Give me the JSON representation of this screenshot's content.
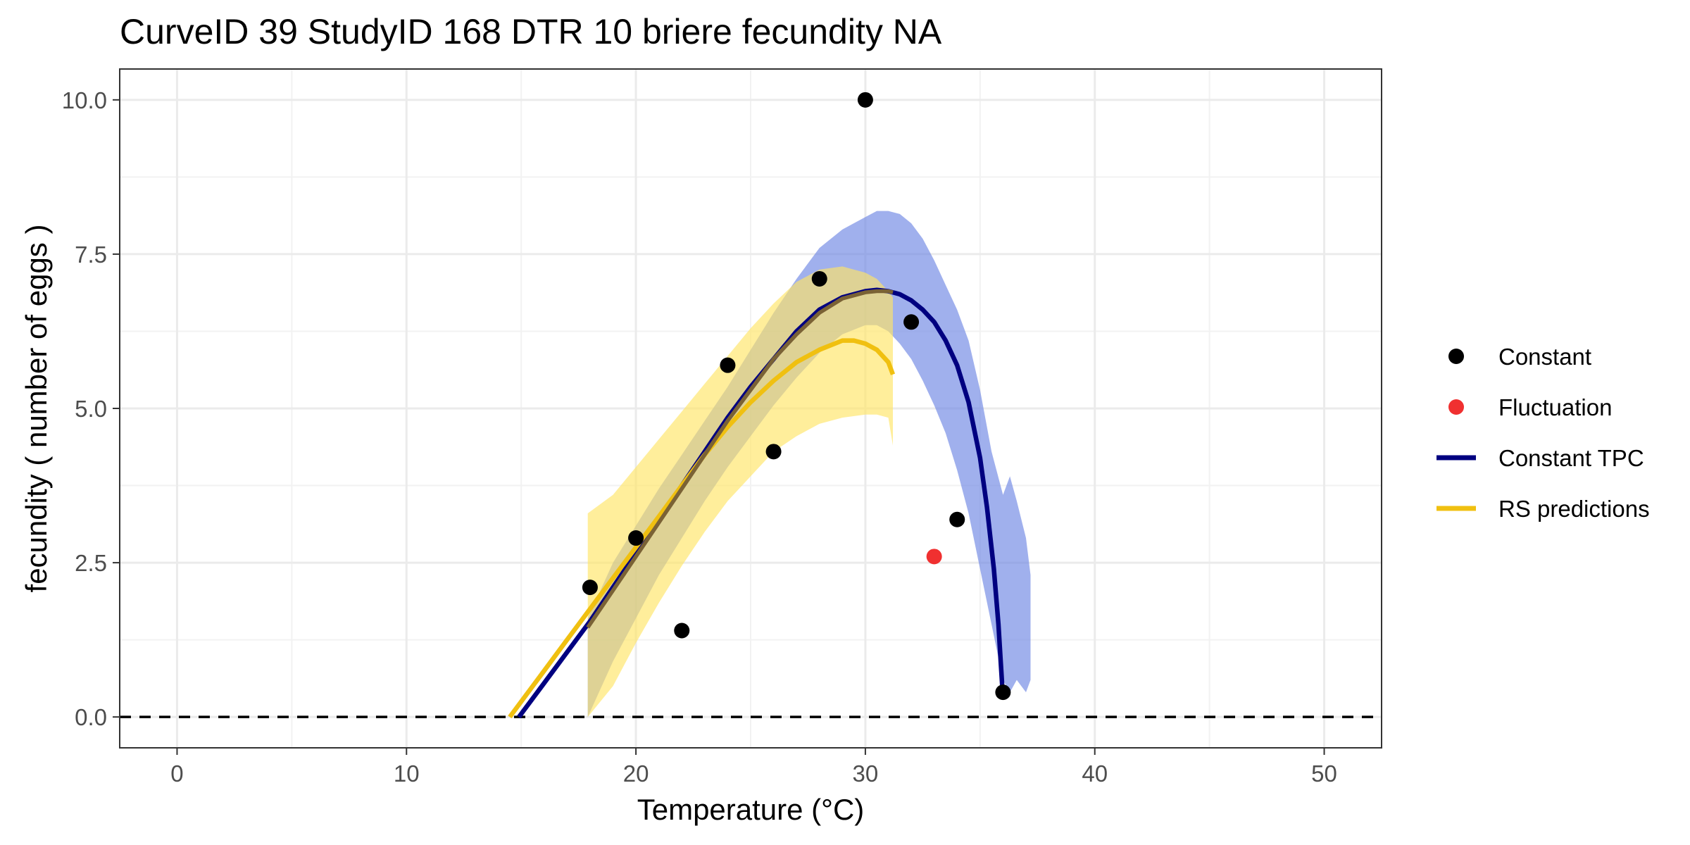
{
  "chart_data": {
    "type": "scatter",
    "title": "CurveID 39 StudyID 168 DTR 10 briere fecundity NA",
    "xlabel": "Temperature (°C)",
    "ylabel": "fecundity ( number of eggs )",
    "xlim": [
      -2.5,
      52.5
    ],
    "ylim": [
      -0.5,
      10.5
    ],
    "x_ticks": [
      0,
      10,
      20,
      30,
      40,
      50
    ],
    "x_tick_labels": [
      "0",
      "10",
      "20",
      "30",
      "40",
      "50"
    ],
    "y_ticks": [
      0,
      2.5,
      5,
      7.5,
      10
    ],
    "y_tick_labels": [
      "0.0",
      "2.5",
      "5.0",
      "7.5",
      "10.0"
    ],
    "grid": true,
    "legend_position": "right",
    "reference_line": {
      "y": 0,
      "style": "dashed",
      "color": "#000000"
    },
    "series": [
      {
        "name": "Constant",
        "kind": "points",
        "color": "#000000",
        "x": [
          18,
          20,
          22,
          24,
          26,
          28,
          30,
          32,
          34,
          36
        ],
        "y": [
          2.1,
          2.9,
          1.4,
          5.7,
          4.3,
          7.1,
          10.0,
          6.4,
          3.2,
          0.4
        ]
      },
      {
        "name": "Fluctuation",
        "kind": "points",
        "color": "#f03030",
        "x": [
          33
        ],
        "y": [
          2.6
        ]
      },
      {
        "name": "Constant TPC",
        "kind": "line",
        "color": "#000080",
        "x": [
          14.9,
          16,
          17,
          18,
          19,
          20,
          21,
          22,
          23,
          24,
          25,
          26,
          27,
          28,
          29,
          30,
          30.5,
          31,
          31.5,
          32,
          32.5,
          33,
          33.5,
          34,
          34.5,
          35,
          35.3,
          35.6,
          35.8,
          35.9,
          36.0
        ],
        "y": [
          0.0,
          0.55,
          1.05,
          1.55,
          2.1,
          2.65,
          3.2,
          3.75,
          4.3,
          4.85,
          5.35,
          5.8,
          6.25,
          6.6,
          6.8,
          6.9,
          6.92,
          6.9,
          6.85,
          6.75,
          6.6,
          6.4,
          6.1,
          5.7,
          5.1,
          4.2,
          3.4,
          2.4,
          1.5,
          0.9,
          0.3
        ],
        "ribbon": {
          "color": "#6d86e3",
          "x": [
            17.9,
            19,
            20,
            21,
            22,
            23,
            24,
            25,
            26,
            27,
            28,
            29,
            30,
            30.5,
            31,
            31.5,
            32,
            32.5,
            33,
            33.5,
            34,
            34.5,
            35,
            35.5,
            36,
            36.3,
            36.6,
            37.0,
            37.2
          ],
          "upper": [
            1.6,
            2.5,
            3.1,
            3.7,
            4.25,
            4.8,
            5.35,
            5.95,
            6.55,
            7.1,
            7.6,
            7.9,
            8.1,
            8.2,
            8.2,
            8.15,
            8.0,
            7.75,
            7.4,
            7.0,
            6.6,
            6.1,
            5.3,
            4.3,
            3.6,
            3.9,
            3.5,
            2.9,
            2.3
          ],
          "lower": [
            0.0,
            0.9,
            1.6,
            2.3,
            2.9,
            3.5,
            4.05,
            4.55,
            5.05,
            5.5,
            5.9,
            6.2,
            6.35,
            6.35,
            6.25,
            6.05,
            5.8,
            5.45,
            5.05,
            4.6,
            4.0,
            3.3,
            2.4,
            1.5,
            0.6,
            0.4,
            0.6,
            0.4,
            0.6
          ]
        }
      },
      {
        "name": "RS predictions",
        "kind": "line",
        "color": "#f0c010",
        "x": [
          14.5,
          15,
          16,
          17,
          18,
          19,
          20,
          21,
          22,
          23,
          24,
          25,
          26,
          27,
          28,
          29,
          29.5,
          30,
          30.5,
          31,
          31.2
        ],
        "y": [
          0.0,
          0.25,
          0.75,
          1.25,
          1.75,
          2.25,
          2.75,
          3.25,
          3.75,
          4.25,
          4.7,
          5.1,
          5.45,
          5.75,
          5.95,
          6.1,
          6.1,
          6.05,
          5.95,
          5.75,
          5.55
        ],
        "ribbon": {
          "color": "#ffe566",
          "x": [
            17.9,
            17.9,
            19,
            20,
            21,
            22,
            23,
            24,
            25,
            26,
            27,
            28,
            29,
            30,
            30.5,
            31,
            31.2,
            31.2
          ],
          "upper": [
            0.1,
            3.3,
            3.6,
            4.05,
            4.5,
            4.95,
            5.4,
            5.85,
            6.3,
            6.7,
            7.05,
            7.25,
            7.3,
            7.2,
            7.1,
            6.9,
            6.8,
            6.8
          ],
          "lower": [
            0.0,
            0.0,
            0.5,
            1.2,
            1.85,
            2.45,
            3.0,
            3.5,
            3.9,
            4.3,
            4.55,
            4.75,
            4.85,
            4.9,
            4.9,
            4.85,
            4.4,
            4.4
          ]
        }
      },
      {
        "name": "",
        "kind": "line",
        "color": "#7a6235",
        "x": [
          17.9,
          19,
          20,
          21,
          22,
          23,
          24,
          25,
          26,
          27,
          28,
          29,
          30,
          30.5,
          31,
          31.2
        ],
        "y": [
          1.45,
          2.05,
          2.6,
          3.15,
          3.7,
          4.25,
          4.8,
          5.3,
          5.8,
          6.2,
          6.55,
          6.78,
          6.88,
          6.9,
          6.9,
          6.88
        ]
      }
    ],
    "legend": [
      {
        "label": "Constant",
        "type": "point",
        "color": "#000000"
      },
      {
        "label": "Fluctuation",
        "type": "point",
        "color": "#f03030"
      },
      {
        "label": "Constant TPC",
        "type": "line",
        "color": "#000080"
      },
      {
        "label": "RS predictions",
        "type": "line",
        "color": "#f0c010"
      }
    ]
  }
}
